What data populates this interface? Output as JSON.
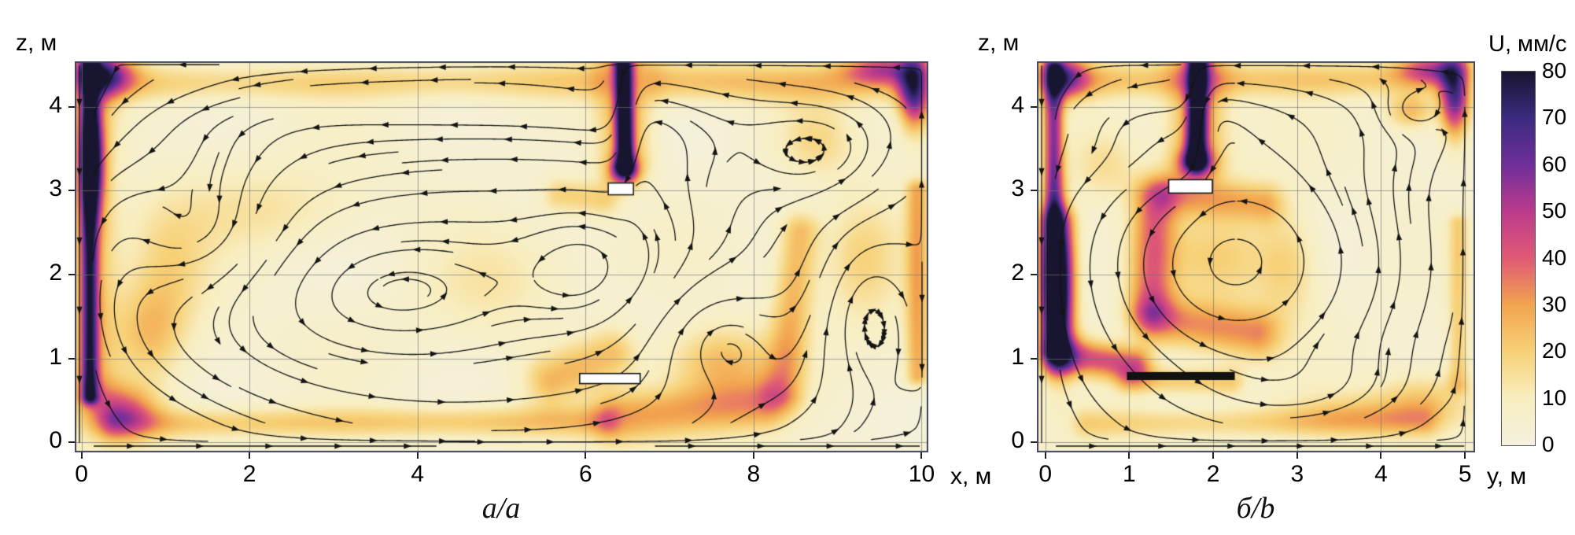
{
  "figure": {
    "background": "#ffffff"
  },
  "colorbar": {
    "title": "U, мм/с",
    "min": 0,
    "max": 80,
    "ticks": [
      80,
      70,
      60,
      50,
      40,
      30,
      20,
      10,
      0
    ],
    "stops": [
      {
        "v": 0,
        "c": "#f4f1de"
      },
      {
        "v": 10,
        "c": "#f8eec0"
      },
      {
        "v": 20,
        "c": "#f7d177"
      },
      {
        "v": 30,
        "c": "#f2a44e"
      },
      {
        "v": 40,
        "c": "#e05a75"
      },
      {
        "v": 50,
        "c": "#bc3b8c"
      },
      {
        "v": 60,
        "c": "#6f2f9a"
      },
      {
        "v": 70,
        "c": "#3c2b80"
      },
      {
        "v": 80,
        "c": "#181530"
      }
    ]
  },
  "chart_data": [
    {
      "id": "a",
      "type": "heatmap",
      "variant": "velocity-magnitude-with-streamlines",
      "caption": "a/a",
      "xlabel": "x, м",
      "ylabel": "z, м",
      "xlim": [
        0,
        10
      ],
      "ylim": [
        0,
        4.5
      ],
      "xticks": [
        0,
        2,
        4,
        6,
        8,
        10
      ],
      "yticks": [
        0,
        1,
        2,
        3,
        4
      ],
      "grid": true,
      "units": "мм/с",
      "field": {
        "base": 4,
        "ridges": [
          {
            "x1": 6.45,
            "z1": 4.54,
            "x2": 6.47,
            "z2": 3.3,
            "w": 0.07,
            "a": 80
          },
          {
            "x1": 6.45,
            "z1": 4.54,
            "x2": 6.47,
            "z2": 3.4,
            "w": 0.22,
            "a": 26
          },
          {
            "x1": 0.3,
            "z1": 4.28,
            "x2": 6.1,
            "z2": 4.3,
            "w": 0.15,
            "a": 15
          },
          {
            "x1": 6.9,
            "z1": 4.3,
            "x2": 9.7,
            "z2": 4.27,
            "w": 0.17,
            "a": 20
          },
          {
            "x1": 0.1,
            "z1": 4.5,
            "x2": 0.1,
            "z2": 0.55,
            "w": 0.07,
            "a": 58
          },
          {
            "x1": 0.13,
            "z1": 4.4,
            "x2": 0.13,
            "z2": 0.7,
            "w": 0.2,
            "a": 20
          },
          {
            "x1": 0.4,
            "z1": 0.22,
            "x2": 6.2,
            "z2": 0.25,
            "w": 0.13,
            "a": 18
          },
          {
            "x1": 6.4,
            "z1": 0.3,
            "x2": 8.1,
            "z2": 0.45,
            "w": 0.22,
            "a": 26
          },
          {
            "x1": 9.95,
            "z1": 3.0,
            "x2": 9.95,
            "z2": 0.8,
            "w": 0.1,
            "a": 24
          },
          {
            "x1": 8.35,
            "z1": 0.6,
            "x2": 8.55,
            "z2": 2.5,
            "w": 0.17,
            "a": 22
          },
          {
            "x1": 5.6,
            "z1": 0.75,
            "x2": 6.3,
            "z2": 1.05,
            "w": 0.22,
            "a": 20
          },
          {
            "x1": 5.7,
            "z1": 2.95,
            "x2": 6.2,
            "z2": 2.9,
            "w": 0.15,
            "a": 16
          }
        ],
        "blobs": [
          {
            "x": 0.25,
            "z": 4.38,
            "sx": 0.25,
            "sz": 0.17,
            "a": 50
          },
          {
            "x": 0.12,
            "z": 3.35,
            "sx": 0.1,
            "sz": 0.45,
            "a": 58
          },
          {
            "x": 9.92,
            "z": 4.2,
            "sx": 0.13,
            "sz": 0.3,
            "a": 66
          },
          {
            "x": 9.55,
            "z": 4.45,
            "sx": 0.33,
            "sz": 0.12,
            "a": 38
          },
          {
            "x": 6.46,
            "z": 3.22,
            "sx": 0.12,
            "sz": 0.12,
            "a": 46
          },
          {
            "x": 0.45,
            "z": 0.35,
            "sx": 0.3,
            "sz": 0.22,
            "a": 38
          },
          {
            "x": 7.6,
            "z": 0.95,
            "sx": 0.45,
            "sz": 0.3,
            "a": 22
          },
          {
            "x": 1.05,
            "z": 2.1,
            "sx": 0.35,
            "sz": 0.55,
            "a": 14
          },
          {
            "x": 2.2,
            "z": 2.75,
            "sx": 0.8,
            "sz": 0.35,
            "a": 10
          },
          {
            "x": 4.9,
            "z": 1.9,
            "sx": 0.6,
            "sz": 0.45,
            "a": 9
          },
          {
            "x": 9.3,
            "z": 2.2,
            "sx": 0.33,
            "sz": 0.5,
            "a": 16
          },
          {
            "x": 8.75,
            "z": 3.6,
            "sx": 0.3,
            "sz": 0.3,
            "a": 12
          },
          {
            "x": 0.8,
            "z": 1.3,
            "sx": 0.3,
            "sz": 0.4,
            "a": 18
          }
        ]
      },
      "flow": {
        "domain": {
          "x0": 0,
          "x1": 10,
          "z0": 0,
          "z1": 4.5
        },
        "vortices": [
          {
            "x": 5.0,
            "z": 2.1,
            "sx": 3.6,
            "sz": 1.8,
            "s": 3.0
          },
          {
            "x": 1.6,
            "z": 2.4,
            "sx": 0.7,
            "sz": 0.55,
            "s": -1.0
          },
          {
            "x": 3.4,
            "z": 1.7,
            "sx": 1.3,
            "sz": 0.65,
            "s": 1.1
          },
          {
            "x": 6.05,
            "z": 2.1,
            "sx": 0.55,
            "sz": 0.5,
            "s": 0.9
          },
          {
            "x": 7.5,
            "z": 1.3,
            "sx": 0.6,
            "sz": 0.5,
            "s": -0.8
          },
          {
            "x": 9.3,
            "z": 1.6,
            "sx": 0.45,
            "sz": 0.7,
            "s": -0.7
          },
          {
            "x": 8.9,
            "z": 3.4,
            "sx": 0.6,
            "sz": 0.45,
            "s": 0.6
          },
          {
            "x": 2.0,
            "z": 3.9,
            "sx": 1.2,
            "sz": 0.35,
            "s": 0.45
          }
        ],
        "jets": [
          {
            "x": 6.46,
            "w": 0.18,
            "z": 4.1,
            "sz": 1.0,
            "s": 0.9
          }
        ],
        "walljets": [
          {
            "side": "left",
            "s": -0.5,
            "d": 0.25
          }
        ]
      },
      "obstacles": [
        {
          "x": 6.27,
          "z": 3.09,
          "w": 0.3,
          "h": 0.14,
          "fill": "#ffffff",
          "stroke": "#222222"
        },
        {
          "x": 5.93,
          "z": 0.82,
          "w": 0.72,
          "h": 0.12,
          "fill": "#ffffff",
          "stroke": "#111111"
        }
      ]
    },
    {
      "id": "b",
      "type": "heatmap",
      "variant": "velocity-magnitude-with-streamlines",
      "caption": "б/b",
      "xlabel": "y, м",
      "ylabel": "z, м",
      "xlim": [
        0,
        5
      ],
      "ylim": [
        0,
        4.5
      ],
      "xticks": [
        0,
        1,
        2,
        3,
        4,
        5
      ],
      "yticks": [
        0,
        1,
        2,
        3,
        4
      ],
      "grid": true,
      "units": "мм/с",
      "field": {
        "base": 4,
        "ridges": [
          {
            "x1": 1.82,
            "z1": 4.54,
            "x2": 1.8,
            "z2": 3.38,
            "w": 0.08,
            "a": 80
          },
          {
            "x1": 1.82,
            "z1": 4.54,
            "x2": 1.8,
            "z2": 3.45,
            "w": 0.24,
            "a": 28
          },
          {
            "x1": 0.3,
            "z1": 4.31,
            "x2": 4.7,
            "z2": 4.33,
            "w": 0.15,
            "a": 18
          },
          {
            "x1": 0.1,
            "z1": 4.45,
            "x2": 0.1,
            "z2": 1.1,
            "w": 0.08,
            "a": 52
          },
          {
            "x1": 0.13,
            "z1": 2.6,
            "x2": 0.16,
            "z2": 1.0,
            "w": 0.15,
            "a": 38
          },
          {
            "x1": 0.2,
            "z1": 1.05,
            "x2": 1.05,
            "z2": 0.92,
            "w": 0.15,
            "a": 38
          },
          {
            "x1": 0.5,
            "z1": 0.22,
            "x2": 4.5,
            "z2": 0.25,
            "w": 0.13,
            "a": 15
          },
          {
            "x1": 4.92,
            "z1": 2.6,
            "x2": 4.92,
            "z2": 0.7,
            "w": 0.09,
            "a": 16
          },
          {
            "x1": 1.3,
            "z1": 2.9,
            "x2": 1.25,
            "z2": 1.6,
            "w": 0.19,
            "a": 32
          },
          {
            "x1": 1.35,
            "z1": 1.45,
            "x2": 2.5,
            "z2": 1.3,
            "w": 0.21,
            "a": 27
          },
          {
            "x1": 1.5,
            "z1": 2.95,
            "x2": 2.6,
            "z2": 2.85,
            "w": 0.17,
            "a": 22
          },
          {
            "x1": 1.0,
            "z1": 0.74,
            "x2": 2.2,
            "z2": 0.72,
            "w": 0.12,
            "a": 18
          }
        ],
        "blobs": [
          {
            "x": 0.2,
            "z": 4.35,
            "sx": 0.21,
            "sz": 0.17,
            "a": 46
          },
          {
            "x": 4.88,
            "z": 4.15,
            "sx": 0.12,
            "sz": 0.33,
            "a": 62
          },
          {
            "x": 4.6,
            "z": 4.45,
            "sx": 0.28,
            "sz": 0.12,
            "a": 36
          },
          {
            "x": 1.8,
            "z": 3.32,
            "sx": 0.14,
            "sz": 0.12,
            "a": 42
          },
          {
            "x": 0.15,
            "z": 1.9,
            "sx": 0.12,
            "sz": 0.6,
            "a": 52
          },
          {
            "x": 2.9,
            "z": 2.1,
            "sx": 0.25,
            "sz": 0.5,
            "a": 14
          },
          {
            "x": 4.5,
            "z": 0.45,
            "sx": 0.4,
            "sz": 0.25,
            "a": 20
          },
          {
            "x": 3.6,
            "z": 0.35,
            "sx": 0.5,
            "sz": 0.2,
            "a": 12
          },
          {
            "x": 4.35,
            "z": 3.95,
            "sx": 0.2,
            "sz": 0.15,
            "a": 22
          },
          {
            "x": 0.7,
            "z": 3.3,
            "sx": 0.3,
            "sz": 0.3,
            "a": 12
          },
          {
            "x": 2.1,
            "z": 2.2,
            "sx": 0.5,
            "sz": 0.4,
            "a": 16
          }
        ]
      },
      "flow": {
        "domain": {
          "x0": 0,
          "x1": 5,
          "z0": 0,
          "z1": 4.5
        },
        "vortices": [
          {
            "x": 2.5,
            "z": 2.1,
            "sx": 1.9,
            "sz": 1.7,
            "s": 2.6
          },
          {
            "x": 2.2,
            "z": 2.15,
            "sx": 0.7,
            "sz": 0.6,
            "s": 1.3
          },
          {
            "x": 1.0,
            "z": 3.9,
            "sx": 0.8,
            "sz": 0.32,
            "s": 0.6
          },
          {
            "x": 4.35,
            "z": 3.95,
            "sx": 0.27,
            "sz": 0.2,
            "s": -0.4
          },
          {
            "x": 3.2,
            "z": 0.6,
            "sx": 1.0,
            "sz": 0.35,
            "s": 0.45
          }
        ],
        "jets": [
          {
            "x": 1.82,
            "w": 0.16,
            "z": 4.1,
            "sz": 0.9,
            "s": 0.8
          }
        ],
        "walljets": [
          {
            "side": "left",
            "s": -0.55,
            "d": 0.22
          }
        ]
      },
      "obstacles": [
        {
          "x": 1.47,
          "z": 3.13,
          "w": 0.52,
          "h": 0.16,
          "fill": "#ffffff",
          "stroke": "#111111"
        },
        {
          "x": 0.98,
          "z": 0.83,
          "w": 1.27,
          "h": 0.08,
          "fill": "#111111",
          "stroke": "#111111"
        }
      ]
    }
  ]
}
